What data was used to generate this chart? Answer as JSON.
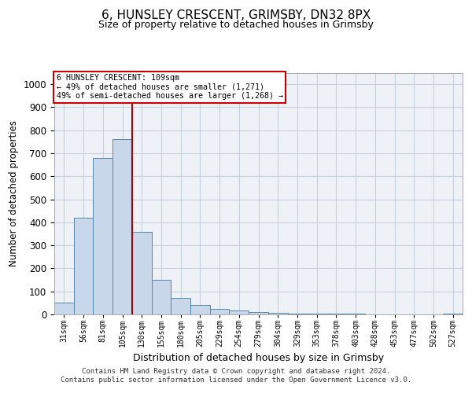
{
  "title_line1": "6, HUNSLEY CRESCENT, GRIMSBY, DN32 8PX",
  "title_line2": "Size of property relative to detached houses in Grimsby",
  "xlabel": "Distribution of detached houses by size in Grimsby",
  "ylabel": "Number of detached properties",
  "footer_line1": "Contains HM Land Registry data © Crown copyright and database right 2024.",
  "footer_line2": "Contains public sector information licensed under the Open Government Licence v3.0.",
  "bar_labels": [
    "31sqm",
    "56sqm",
    "81sqm",
    "105sqm",
    "130sqm",
    "155sqm",
    "180sqm",
    "205sqm",
    "229sqm",
    "254sqm",
    "279sqm",
    "304sqm",
    "329sqm",
    "353sqm",
    "378sqm",
    "403sqm",
    "428sqm",
    "453sqm",
    "477sqm",
    "502sqm",
    "527sqm"
  ],
  "bar_values": [
    50,
    420,
    680,
    760,
    360,
    150,
    72,
    40,
    25,
    18,
    10,
    8,
    5,
    3,
    2,
    2,
    1,
    1,
    1,
    1,
    5
  ],
  "bar_color": "#c8d8ea",
  "bar_edge_color": "#5588aa",
  "vline_color": "#aa0000",
  "annotation_text": "6 HUNSLEY CRESCENT: 109sqm\n← 49% of detached houses are smaller (1,271)\n49% of semi-detached houses are larger (1,268) →",
  "annotation_box_color": "#ffffff",
  "annotation_border_color": "#cc0000",
  "ylim": [
    0,
    1050
  ],
  "yticks": [
    0,
    100,
    200,
    300,
    400,
    500,
    600,
    700,
    800,
    900,
    1000
  ],
  "grid_color": "#c8d0dc",
  "background_color": "#eef2f7",
  "vline_x": 3.5
}
